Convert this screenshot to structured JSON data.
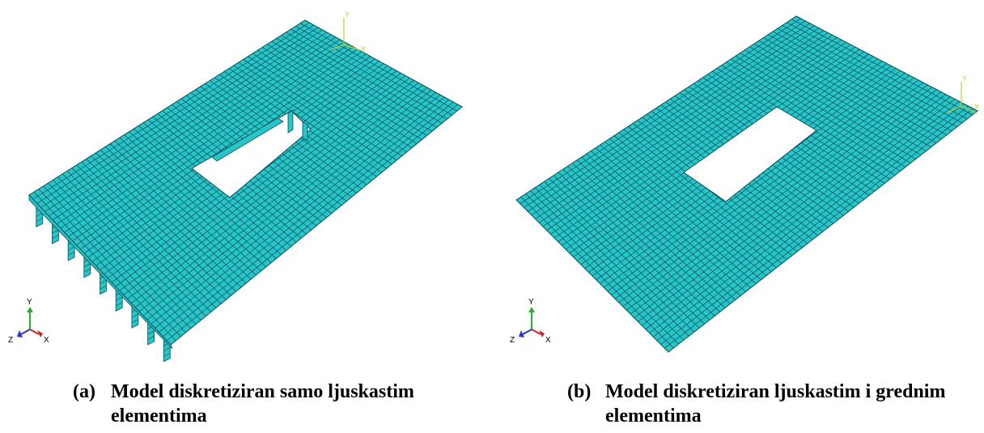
{
  "panels": [
    {
      "id": "a",
      "label": "(a)",
      "caption_line1": "Model diskretiziran samo ljuskastim",
      "caption_line2": "elementima",
      "triad_labels": {
        "y": "Y",
        "z": "Z",
        "x": "X"
      },
      "corner_axis_labels": {
        "y": "Y",
        "x": "X"
      }
    },
    {
      "id": "b",
      "label": "(b)",
      "caption_line1": "Model diskretiziran ljuskastim i grednim",
      "caption_line2": "elementima",
      "triad_labels": {
        "y": "Y",
        "z": "Z",
        "x": "X"
      },
      "corner_axis_labels": {
        "y": "Y",
        "x": "X"
      }
    }
  ],
  "colors": {
    "mesh_fill": "#26c6c8",
    "mesh_line": "#0b4b5a",
    "triad_y": "#27b327",
    "triad_z": "#2a35c8",
    "triad_x": "#c62a2a",
    "corner_axes": "#c8c832"
  }
}
